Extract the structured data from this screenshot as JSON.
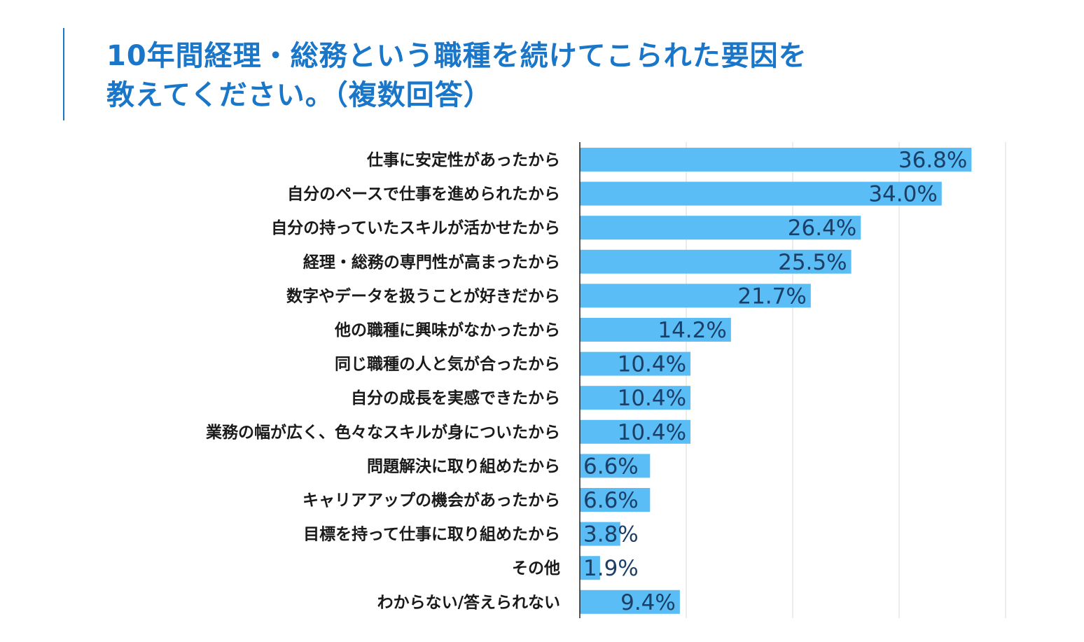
{
  "title": {
    "line1": "10年間経理・総務という職種を続けてこられた要因を",
    "line2": "教えてください。（複数回答）"
  },
  "colors": {
    "title": "#1976c8",
    "bar": "#5bbdf5",
    "value_text": "#1b3f66",
    "grid": "#d8d8d8",
    "axis": "#222222"
  },
  "chart_data": {
    "type": "bar",
    "orientation": "horizontal",
    "title": "10年間経理・総務という職種を続けてこられた要因を教えてください。（複数回答）",
    "unit": "%",
    "xlim": [
      0,
      40
    ],
    "x_gridlines": [
      0,
      10,
      20,
      30,
      40
    ],
    "categories": [
      "仕事に安定性があったから",
      "自分のペースで仕事を進められたから",
      "自分の持っていたスキルが活かせたから",
      "経理・総務の専門性が高まったから",
      "数字やデータを扱うことが好きだから",
      "他の職種に興味がなかったから",
      "同じ職種の人と気が合ったから",
      "自分の成長を実感できたから",
      "業務の幅が広く、色々なスキルが身についたから",
      "問題解決に取り組めたから",
      "キャリアアップの機会があったから",
      "目標を持って仕事に取り組めたから",
      "その他",
      "わからない/答えられない"
    ],
    "values": [
      36.8,
      34.0,
      26.4,
      25.5,
      21.7,
      14.2,
      10.4,
      10.4,
      10.4,
      6.6,
      6.6,
      3.8,
      1.9,
      9.4
    ],
    "value_labels": [
      "36.8%",
      "34.0%",
      "26.4%",
      "25.5%",
      "21.7%",
      "14.2%",
      "10.4%",
      "10.4%",
      "10.4%",
      "6.6%",
      "6.6%",
      "3.8%",
      "1.9%",
      "9.4%"
    ]
  }
}
